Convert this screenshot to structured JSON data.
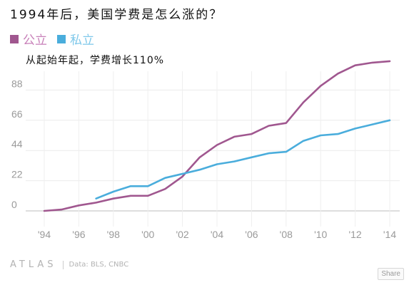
{
  "title": "1994年后，美国学费是怎么涨的？",
  "annotation": "从起始年起，学费增长110%",
  "legend": [
    {
      "label": "公立",
      "color": "#a0578f"
    },
    {
      "label": "私立",
      "color": "#4aaddc"
    }
  ],
  "footer": {
    "brand": "ATLAS",
    "source": "Data: BLS, CNBC",
    "share_label": "Share"
  },
  "chart_data": {
    "type": "line",
    "xlabel": "",
    "ylabel": "",
    "title": "",
    "xlim": [
      1994,
      2014
    ],
    "ylim": [
      0,
      110
    ],
    "yticks": [
      0,
      22,
      44,
      66,
      88
    ],
    "ytick_labels": [
      "0",
      "22",
      "44",
      "66",
      "88"
    ],
    "xticks": [
      1994,
      1996,
      1998,
      2000,
      2002,
      2004,
      2006,
      2008,
      2010,
      2012,
      2014
    ],
    "xtick_labels": [
      "'94",
      "'96",
      "'98",
      "'00",
      "'02",
      "'04",
      "'06",
      "'08",
      "'10",
      "'12",
      "'14"
    ],
    "grid": true,
    "legend_position": "top-left",
    "series": [
      {
        "name": "公立",
        "color": "#a0578f",
        "x": [
          1994,
          1995,
          1996,
          1997,
          1998,
          1999,
          2000,
          2001,
          2002,
          2003,
          2004,
          2005,
          2006,
          2007,
          2008,
          2009,
          2010,
          2011,
          2012,
          2013,
          2014
        ],
        "y": [
          0,
          1,
          4,
          6,
          9,
          11,
          11,
          16,
          25,
          39,
          48,
          54,
          56,
          62,
          64,
          79,
          91,
          100,
          106,
          108,
          109
        ]
      },
      {
        "name": "私立",
        "color": "#4aaddc",
        "x": [
          1997,
          1998,
          1999,
          2000,
          2001,
          2002,
          2003,
          2004,
          2005,
          2006,
          2007,
          2008,
          2009,
          2010,
          2011,
          2012,
          2013,
          2014
        ],
        "y": [
          9,
          14,
          18,
          18,
          24,
          27,
          30,
          34,
          36,
          39,
          42,
          43,
          51,
          55,
          56,
          60,
          63,
          66
        ]
      }
    ]
  }
}
